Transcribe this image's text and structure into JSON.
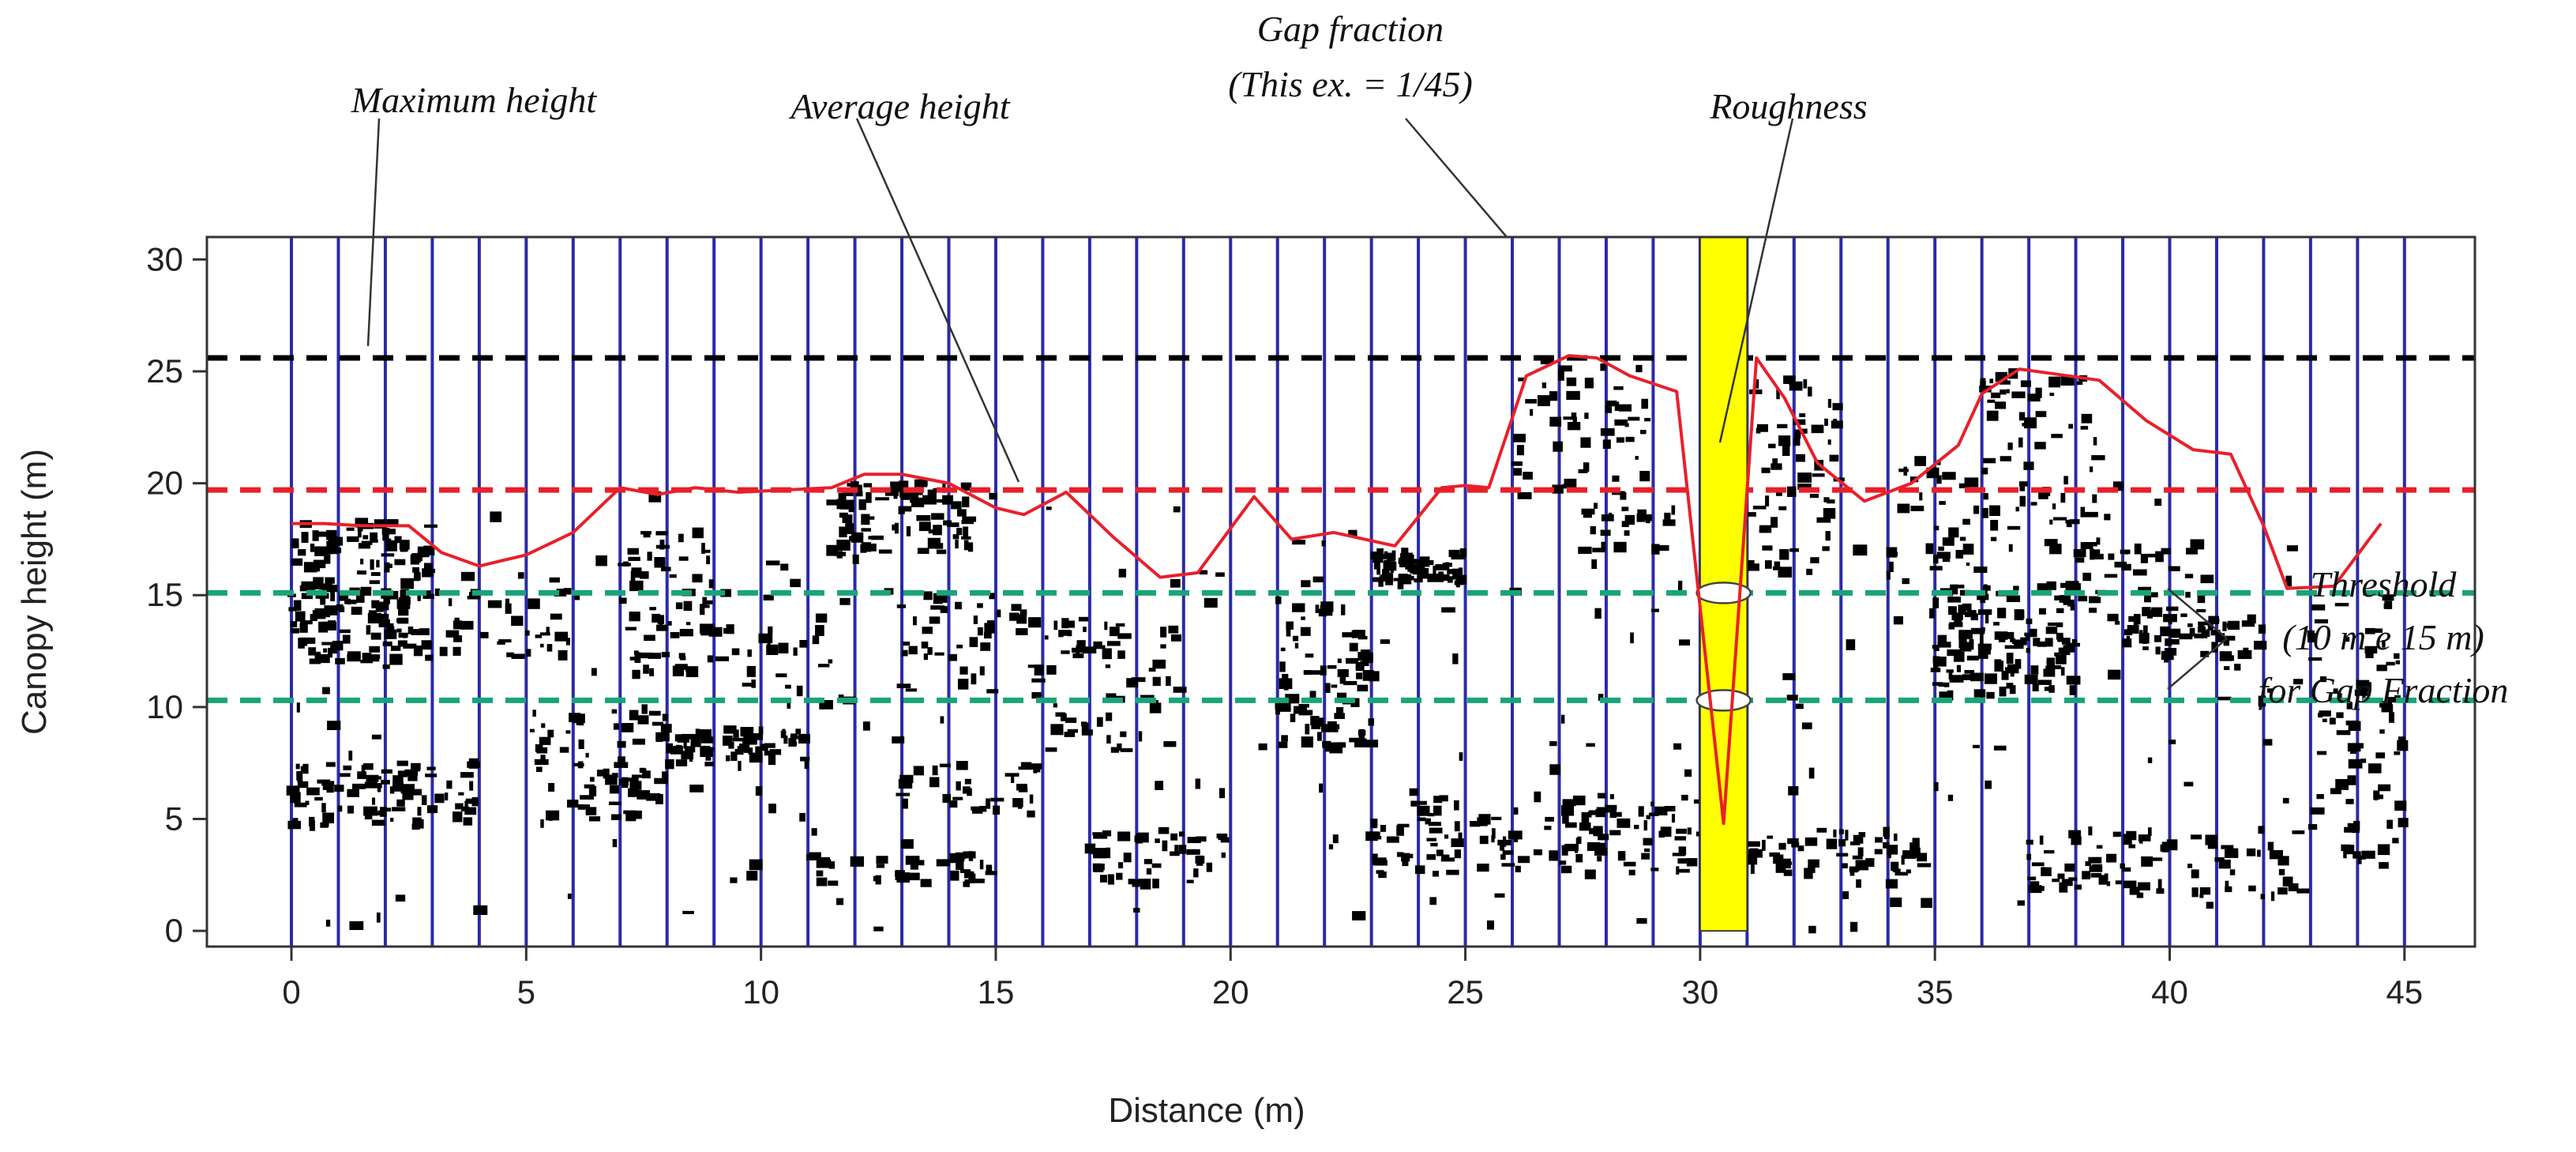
{
  "chart_data": {
    "type": "scatter",
    "xlabel": "Distance (m)",
    "ylabel": "Canopy height (m)",
    "xlim": [
      -1.8,
      46.5
    ],
    "ylim": [
      -0.7,
      31
    ],
    "xticks": [
      0,
      5,
      10,
      15,
      20,
      25,
      30,
      35,
      40,
      45
    ],
    "yticks": [
      0,
      5,
      10,
      15,
      20,
      25,
      30
    ],
    "grid_lines_x": [
      0,
      1,
      2,
      3,
      4,
      5,
      6,
      7,
      8,
      9,
      10,
      11,
      12,
      13,
      14,
      15,
      16,
      17,
      18,
      19,
      20,
      21,
      22,
      23,
      24,
      25,
      26,
      27,
      28,
      29,
      30,
      31,
      32,
      33,
      34,
      35,
      36,
      37,
      38,
      39,
      40,
      41,
      42,
      43,
      44,
      45
    ],
    "reference_lines": [
      {
        "name": "Maximum height",
        "y": 25.6,
        "color": "#000000"
      },
      {
        "name": "Average height",
        "y": 19.7,
        "color": "#e8202a"
      },
      {
        "name": "Threshold 15 m",
        "y": 15.1,
        "color": "#1aa37a"
      },
      {
        "name": "Threshold 10 m",
        "y": 10.3,
        "color": "#1aa37a"
      }
    ],
    "roughness_line": {
      "name": "Roughness",
      "color": "#e8202a",
      "x": [
        0,
        0.7,
        1.5,
        2.5,
        3.2,
        4,
        5,
        6,
        7,
        7.8,
        8.6,
        9.5,
        10.5,
        11.5,
        12.2,
        13,
        14,
        15,
        15.6,
        16.5,
        17.5,
        18.5,
        19.3,
        20.5,
        21.3,
        22.2,
        23.5,
        24.5,
        25,
        25.5,
        26.3,
        27.2,
        27.8,
        28.5,
        29.5,
        30.5,
        31.2,
        31.8,
        32.5,
        33.5,
        34.5,
        35.5,
        36,
        36.8,
        37.5,
        38.5,
        39.5,
        40.5,
        41.3,
        42,
        42.5,
        43.5,
        44.5
      ],
      "y": [
        18.2,
        18.2,
        18.1,
        18.1,
        16.9,
        16.3,
        16.8,
        17.8,
        19.8,
        19.5,
        19.8,
        19.6,
        19.7,
        19.8,
        20.4,
        20.4,
        20.0,
        18.9,
        18.6,
        19.6,
        17.6,
        15.8,
        16.0,
        19.4,
        17.5,
        17.8,
        17.2,
        19.8,
        19.9,
        19.8,
        24.8,
        25.7,
        25.6,
        24.8,
        24.1,
        4.8,
        25.6,
        23.8,
        20.9,
        19.2,
        20.0,
        21.7,
        24.0,
        25.1,
        24.9,
        24.6,
        22.8,
        21.5,
        21.3,
        18.1,
        15.3,
        15.4,
        18.2
      ]
    },
    "gap_bar": {
      "x_start": 30,
      "x_end": 31,
      "y_top": 31,
      "y_bottom": 0,
      "color": "#ffff00"
    },
    "gap_markers_y": [
      15.1,
      10.3
    ],
    "point_clusters": [
      {
        "x": [
          0,
          3
        ],
        "y": [
          12,
          18.3
        ],
        "n": 180
      },
      {
        "x": [
          0,
          4
        ],
        "y": [
          4.6,
          7.6
        ],
        "n": 90
      },
      {
        "x": [
          3,
          6
        ],
        "y": [
          12,
          16
        ],
        "n": 40
      },
      {
        "x": [
          5,
          8
        ],
        "y": [
          5,
          10
        ],
        "n": 70
      },
      {
        "x": [
          7,
          9
        ],
        "y": [
          11.5,
          18
        ],
        "n": 60
      },
      {
        "x": [
          8,
          11
        ],
        "y": [
          7.3,
          9
        ],
        "n": 60
      },
      {
        "x": [
          9,
          12
        ],
        "y": [
          10,
          14
        ],
        "n": 30
      },
      {
        "x": [
          11.5,
          14.5
        ],
        "y": [
          16.8,
          20
        ],
        "n": 80
      },
      {
        "x": [
          11,
          15
        ],
        "y": [
          2,
          3.5
        ],
        "n": 40
      },
      {
        "x": [
          13,
          16
        ],
        "y": [
          5,
          7.5
        ],
        "n": 35
      },
      {
        "x": [
          13,
          16
        ],
        "y": [
          10.5,
          15
        ],
        "n": 45
      },
      {
        "x": [
          16,
          19
        ],
        "y": [
          8,
          14
        ],
        "n": 60
      },
      {
        "x": [
          17,
          20
        ],
        "y": [
          2,
          4.5
        ],
        "n": 45
      },
      {
        "x": [
          21,
          23
        ],
        "y": [
          8,
          14.5
        ],
        "n": 80
      },
      {
        "x": [
          23,
          25
        ],
        "y": [
          15.5,
          17
        ],
        "n": 60
      },
      {
        "x": [
          23,
          30
        ],
        "y": [
          2.5,
          6
        ],
        "n": 130
      },
      {
        "x": [
          26,
          29
        ],
        "y": [
          19,
          25.5
        ],
        "n": 55
      },
      {
        "x": [
          27.5,
          29.5
        ],
        "y": [
          17,
          19
        ],
        "n": 25
      },
      {
        "x": [
          31,
          33
        ],
        "y": [
          16,
          25
        ],
        "n": 60
      },
      {
        "x": [
          31,
          35
        ],
        "y": [
          2.5,
          4.5
        ],
        "n": 60
      },
      {
        "x": [
          34,
          36
        ],
        "y": [
          15.5,
          21
        ],
        "n": 35
      },
      {
        "x": [
          35,
          38
        ],
        "y": [
          10.5,
          15.5
        ],
        "n": 130
      },
      {
        "x": [
          36,
          38.5
        ],
        "y": [
          17,
          25
        ],
        "n": 70
      },
      {
        "x": [
          38,
          41
        ],
        "y": [
          13,
          17
        ],
        "n": 50
      },
      {
        "x": [
          39,
          42
        ],
        "y": [
          12,
          14
        ],
        "n": 40
      },
      {
        "x": [
          37,
          43
        ],
        "y": [
          1.5,
          4.5
        ],
        "n": 80
      },
      {
        "x": [
          43,
          45
        ],
        "y": [
          3,
          15
        ],
        "n": 70
      },
      {
        "x": [
          0,
          45
        ],
        "y": [
          0,
          20
        ],
        "n": 200
      }
    ],
    "annotations": [
      {
        "text": "Maximum height"
      },
      {
        "text": "Average height"
      },
      {
        "text": "Gap fraction"
      },
      {
        "text": "(This ex. = 1/45)"
      },
      {
        "text": "Roughness"
      },
      {
        "text": "Threshold"
      },
      {
        "text": "(10 m e 15 m)"
      },
      {
        "text": "for Gap Fraction"
      }
    ]
  }
}
